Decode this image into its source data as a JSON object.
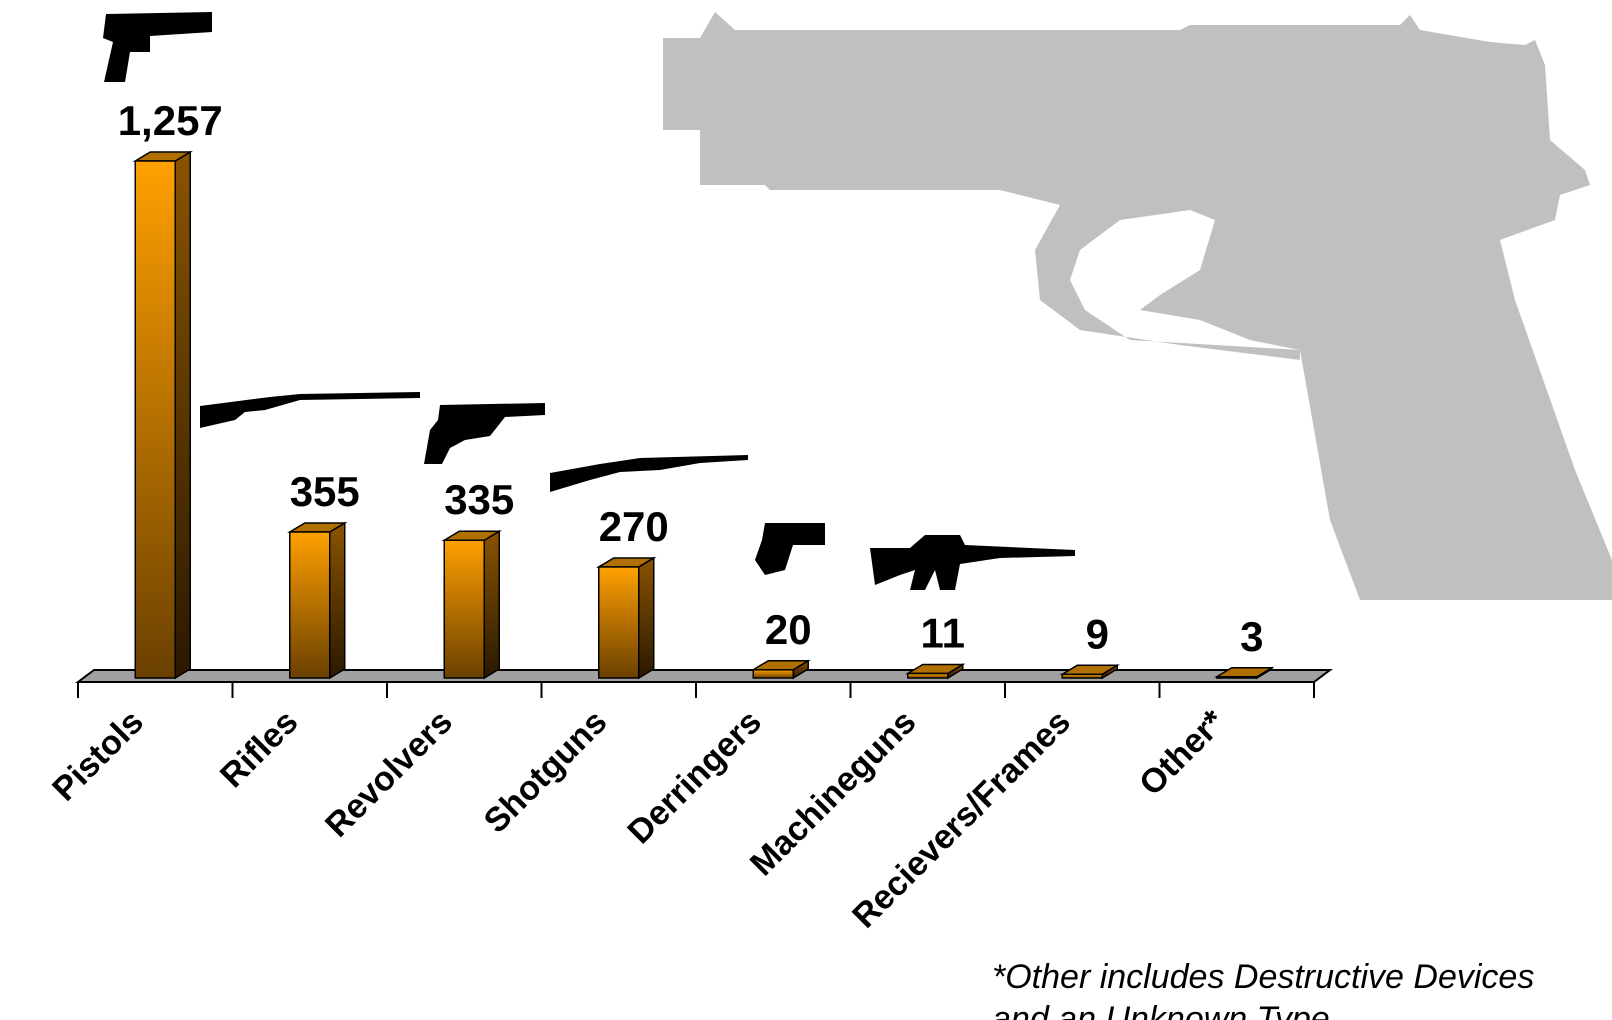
{
  "chart_data": {
    "type": "bar",
    "categories": [
      "Pistols",
      "Rifles",
      "Revolvers",
      "Shotguns",
      "Derringers",
      "Machineguns",
      "Recievers/Frames",
      "Other*"
    ],
    "values": [
      1257,
      355,
      335,
      270,
      20,
      11,
      9,
      3
    ],
    "value_labels": [
      "1,257",
      "355",
      "335",
      "270",
      "20",
      "11",
      "9",
      "3"
    ],
    "color": "#ffa000",
    "footnote": [
      "*Other includes Destructive Devices",
      "and an Unknown Type"
    ]
  }
}
